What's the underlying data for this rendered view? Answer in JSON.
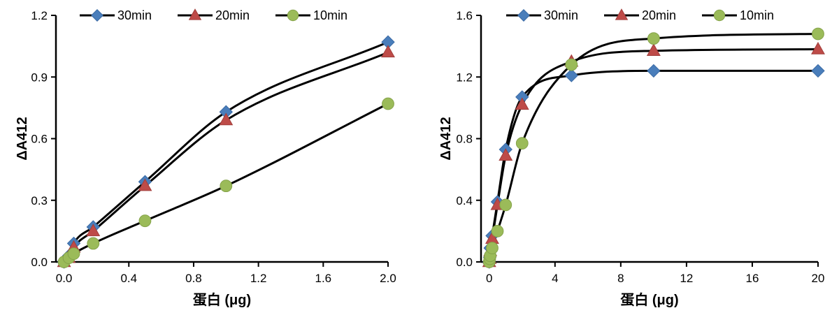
{
  "chart_data": [
    {
      "type": "line",
      "xlabel": "蛋白 (μg)",
      "ylabel": "ΔA412",
      "xlim": [
        -0.05,
        2.0
      ],
      "ylim": [
        0,
        1.2
      ],
      "xticks": [
        "0.0",
        "0.4",
        "0.8",
        "1.2",
        "1.6",
        "2.0"
      ],
      "xtick_values": [
        0,
        0.4,
        0.8,
        1.2,
        1.6,
        2.0
      ],
      "yticks": [
        "0.0",
        "0.3",
        "0.6",
        "0.9",
        "1.2"
      ],
      "ytick_values": [
        0,
        0.3,
        0.6,
        0.9,
        1.2
      ],
      "grid": false,
      "legend_position": "top",
      "series": [
        {
          "name": "30min",
          "marker": "diamond",
          "color": "#4a7ebb",
          "x": [
            0,
            0.03,
            0.06,
            0.18,
            0.5,
            1.0,
            2.0
          ],
          "y": [
            0,
            0.03,
            0.09,
            0.17,
            0.39,
            0.73,
            1.07
          ]
        },
        {
          "name": "20min",
          "marker": "triangle",
          "color": "#be4b48",
          "x": [
            0,
            0.03,
            0.06,
            0.18,
            0.5,
            1.0,
            2.0
          ],
          "y": [
            0,
            0.02,
            0.07,
            0.15,
            0.37,
            0.69,
            1.02
          ]
        },
        {
          "name": "10min",
          "marker": "circle",
          "color": "#9bbb59",
          "x": [
            0,
            0.03,
            0.06,
            0.18,
            0.5,
            1.0,
            2.0
          ],
          "y": [
            0,
            0.02,
            0.04,
            0.09,
            0.2,
            0.37,
            0.77
          ]
        }
      ]
    },
    {
      "type": "line",
      "xlabel": "蛋白 (μg)",
      "ylabel": "ΔA412",
      "xlim": [
        -0.5,
        20
      ],
      "ylim": [
        0,
        1.6
      ],
      "xticks": [
        "0",
        "4",
        "8",
        "12",
        "16",
        "20"
      ],
      "xtick_values": [
        0,
        4,
        8,
        12,
        16,
        20
      ],
      "yticks": [
        "0.0",
        "0.4",
        "0.8",
        "1.2",
        "1.6"
      ],
      "ytick_values": [
        0,
        0.4,
        0.8,
        1.2,
        1.6
      ],
      "grid": false,
      "legend_position": "top",
      "series": [
        {
          "name": "30min",
          "marker": "diamond",
          "color": "#4a7ebb",
          "x": [
            0,
            0.03,
            0.06,
            0.18,
            0.5,
            1.0,
            2.0,
            5.0,
            10.0,
            20.0
          ],
          "y": [
            0,
            0.03,
            0.09,
            0.17,
            0.39,
            0.73,
            1.07,
            1.21,
            1.24,
            1.24
          ]
        },
        {
          "name": "20min",
          "marker": "triangle",
          "color": "#be4b48",
          "x": [
            0,
            0.03,
            0.06,
            0.18,
            0.5,
            1.0,
            2.0,
            5.0,
            10.0,
            20.0
          ],
          "y": [
            0,
            0.02,
            0.07,
            0.15,
            0.37,
            0.69,
            1.02,
            1.3,
            1.37,
            1.38
          ]
        },
        {
          "name": "10min",
          "marker": "circle",
          "color": "#9bbb59",
          "x": [
            0,
            0.03,
            0.06,
            0.18,
            0.5,
            1.0,
            2.0,
            5.0,
            10.0,
            20.0
          ],
          "y": [
            0,
            0.02,
            0.04,
            0.09,
            0.2,
            0.37,
            0.77,
            1.28,
            1.45,
            1.48
          ]
        }
      ]
    }
  ]
}
